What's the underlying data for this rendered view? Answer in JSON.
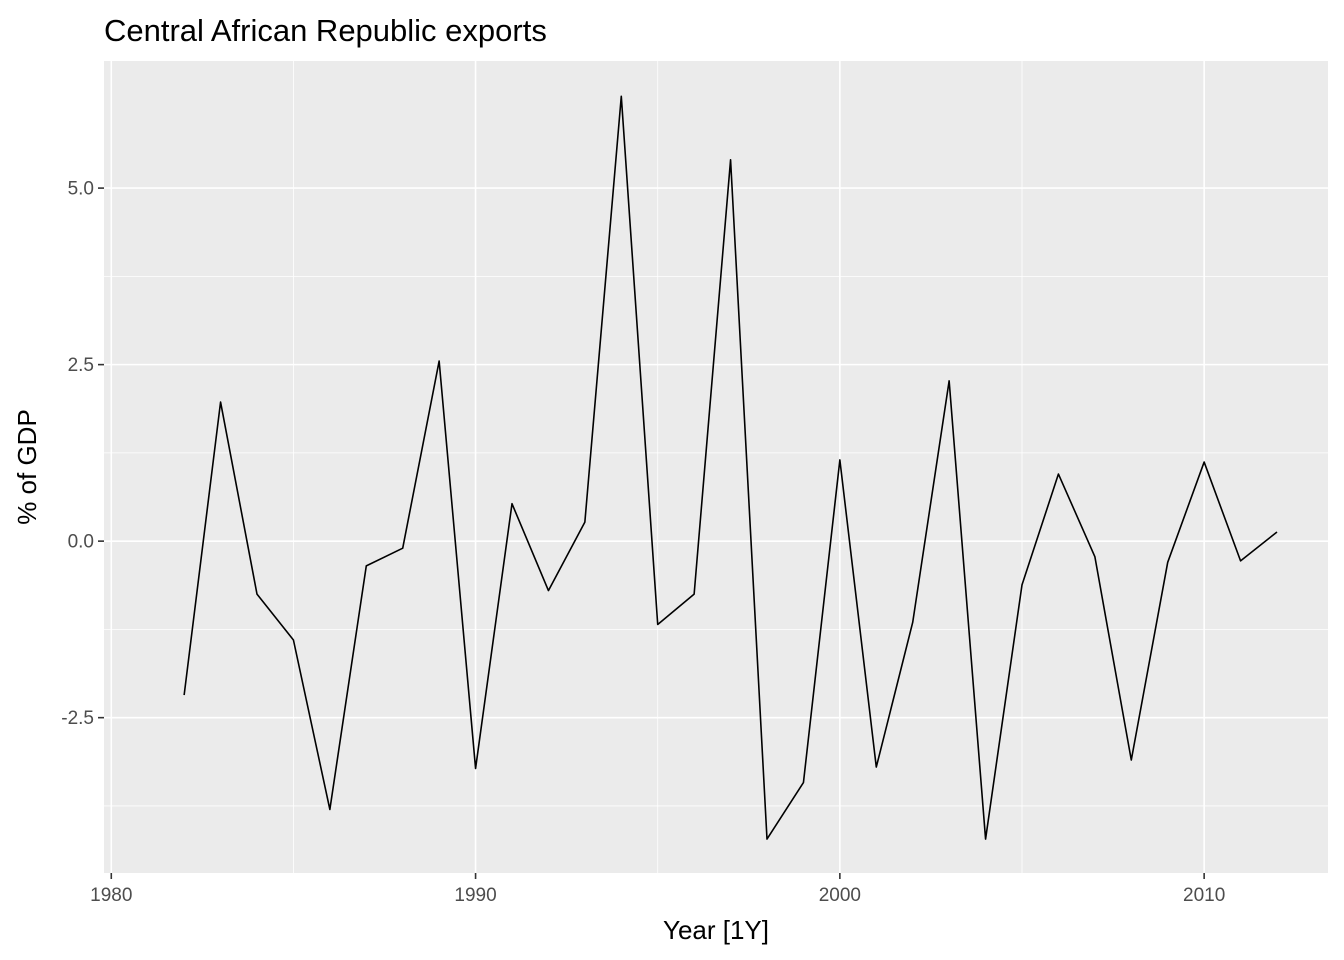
{
  "chart_data": {
    "type": "line",
    "title": "Central African Republic exports",
    "xlabel": "Year [1Y]",
    "ylabel": "% of GDP",
    "xlim": [
      1979.8,
      2013.4
    ],
    "ylim": [
      -4.7,
      6.8
    ],
    "x_ticks": [
      1980,
      1990,
      2000,
      2010
    ],
    "x_tick_labels": [
      "1980",
      "1990",
      "2000",
      "2010"
    ],
    "x_minor_ticks": [
      1985,
      1995,
      2005
    ],
    "y_ticks": [
      -2.5,
      0,
      2.5,
      5
    ],
    "y_tick_labels": [
      "-2.5",
      "0.0",
      "2.5",
      "5.0"
    ],
    "y_minor_ticks": [
      -3.75,
      -1.25,
      1.25,
      3.75
    ],
    "grid": true,
    "background": "#ebebeb",
    "line_color": "#000000",
    "x": [
      1982,
      1983,
      1984,
      1985,
      1986,
      1987,
      1988,
      1989,
      1990,
      1991,
      1992,
      1993,
      1994,
      1995,
      1996,
      1997,
      1998,
      1999,
      2000,
      2001,
      2002,
      2003,
      2004,
      2005,
      2006,
      2007,
      2008,
      2009,
      2010,
      2011,
      2012
    ],
    "values": [
      -2.18,
      1.97,
      -0.75,
      -1.4,
      -3.8,
      -0.35,
      -0.1,
      2.55,
      -3.22,
      0.53,
      -0.7,
      0.27,
      6.3,
      -1.18,
      -0.75,
      5.4,
      -4.22,
      -3.42,
      1.15,
      -3.2,
      -1.15,
      2.27,
      -4.22,
      -0.62,
      0.95,
      -0.22,
      -3.1,
      -0.3,
      1.12,
      -0.28,
      0.13
    ]
  }
}
